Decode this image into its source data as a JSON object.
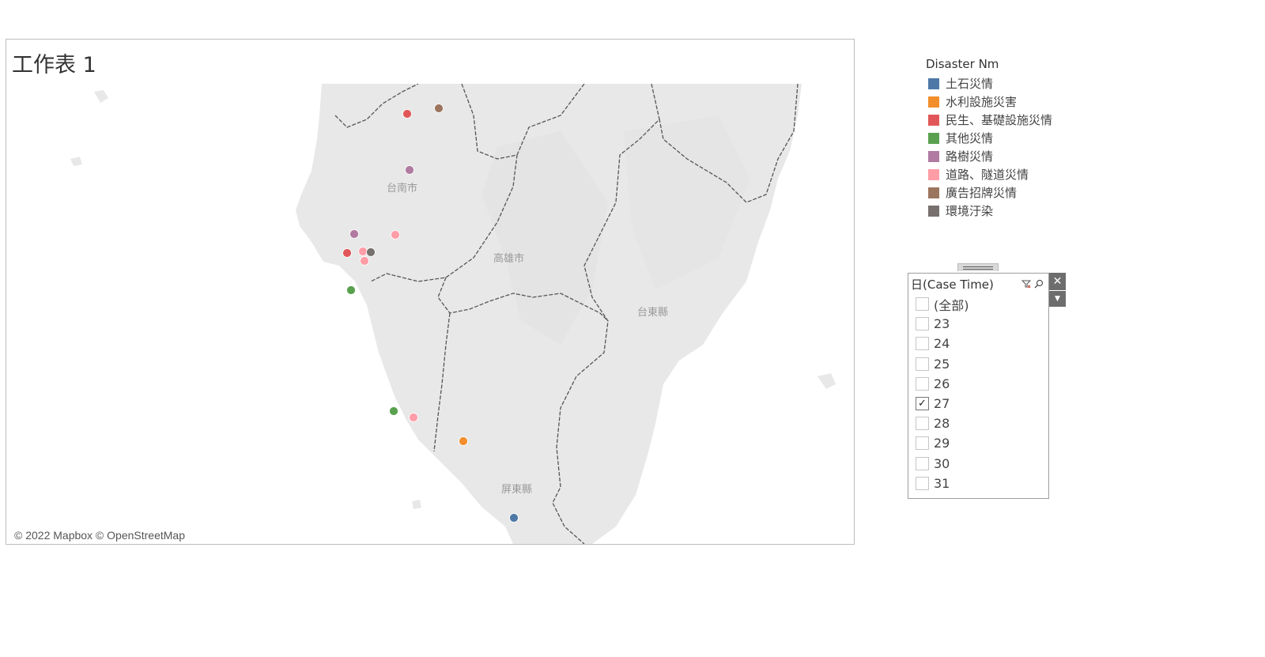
{
  "sheet": {
    "title": "工作表 1"
  },
  "map": {
    "attribution": "© 2022 Mapbox © OpenStreetMap",
    "place_labels": [
      "台南市",
      "高雄市",
      "台東縣",
      "屏東縣"
    ],
    "points": [
      {
        "category": "民生、基礎設施災情"
      },
      {
        "category": "廣告招牌災情"
      },
      {
        "category": "路樹災情"
      },
      {
        "category": "路樹災情"
      },
      {
        "category": "道路、隧道災情"
      },
      {
        "category": "道路、隧道災情"
      },
      {
        "category": "民生、基礎設施災情"
      },
      {
        "category": "環境汙染"
      },
      {
        "category": "道路、隧道災情"
      },
      {
        "category": "其他災情"
      },
      {
        "category": "其他災情"
      },
      {
        "category": "道路、隧道災情"
      },
      {
        "category": "水利設施災害"
      },
      {
        "category": "土石災情"
      }
    ]
  },
  "legend": {
    "title": "Disaster Nm",
    "items": [
      {
        "label": "土石災情",
        "color": "#4e79a7"
      },
      {
        "label": "水利設施災害",
        "color": "#f28e2b"
      },
      {
        "label": "民生、基礎設施災情",
        "color": "#e15759"
      },
      {
        "label": "其他災情",
        "color": "#59a14f"
      },
      {
        "label": "路樹災情",
        "color": "#b07aa1"
      },
      {
        "label": "道路、隧道災情",
        "color": "#ff9da7"
      },
      {
        "label": "廣告招牌災情",
        "color": "#9c755f"
      },
      {
        "label": "環境汙染",
        "color": "#76706e"
      }
    ]
  },
  "filter": {
    "title": "日(Case Time)",
    "close_icon": "close-icon",
    "menu_icon": "dropdown-arrow-icon",
    "options": [
      {
        "label": "(全部)",
        "checked": false
      },
      {
        "label": "23",
        "checked": false
      },
      {
        "label": "24",
        "checked": false
      },
      {
        "label": "25",
        "checked": false
      },
      {
        "label": "26",
        "checked": false
      },
      {
        "label": "27",
        "checked": true
      },
      {
        "label": "28",
        "checked": false
      },
      {
        "label": "29",
        "checked": false
      },
      {
        "label": "30",
        "checked": false
      },
      {
        "label": "31",
        "checked": false
      }
    ]
  }
}
